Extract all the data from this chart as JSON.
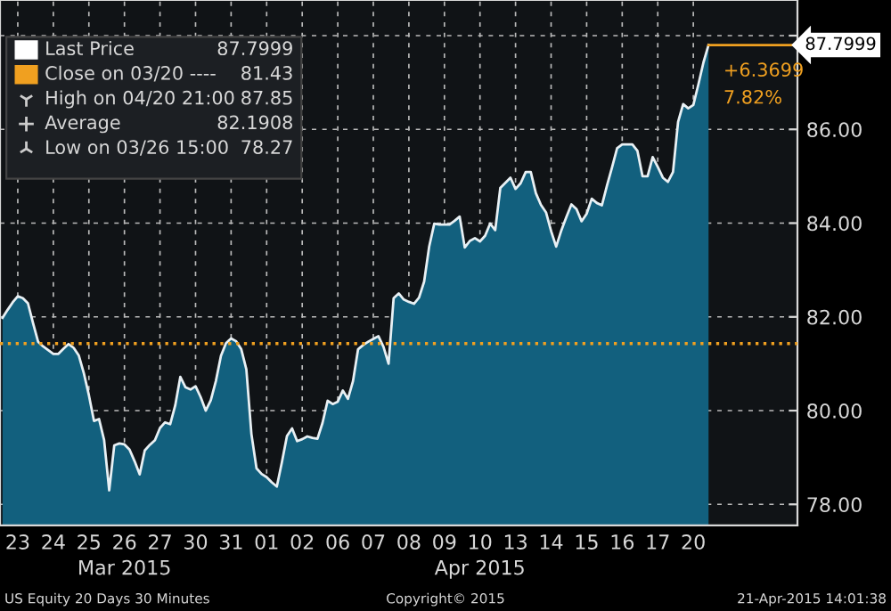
{
  "chart_data": {
    "type": "area",
    "categories": [
      null,
      null,
      null,
      "23",
      null,
      null,
      null,
      null,
      null,
      null,
      "24",
      null,
      null,
      null,
      null,
      null,
      null,
      "25",
      null,
      null,
      null,
      null,
      null,
      null,
      "26",
      null,
      null,
      null,
      null,
      null,
      null,
      "27",
      null,
      null,
      null,
      null,
      null,
      null,
      "30",
      null,
      null,
      null,
      null,
      null,
      null,
      "31",
      null,
      null,
      null,
      null,
      null,
      null,
      "01",
      null,
      null,
      null,
      null,
      null,
      null,
      "02",
      null,
      null,
      null,
      null,
      null,
      null,
      "06",
      null,
      null,
      null,
      null,
      null,
      null,
      "07",
      null,
      null,
      null,
      null,
      null,
      null,
      "08",
      null,
      null,
      null,
      null,
      null,
      null,
      "09",
      null,
      null,
      null,
      null,
      null,
      null,
      "10",
      null,
      null,
      null,
      null,
      null,
      null,
      "13",
      null,
      null,
      null,
      null,
      null,
      null,
      "14",
      null,
      null,
      null,
      null,
      null,
      null,
      "15",
      null,
      null,
      null,
      null,
      null,
      null,
      "16",
      null,
      null,
      null,
      null,
      null,
      null,
      "17",
      null,
      null,
      null,
      null,
      null,
      null,
      "20",
      null,
      null,
      null
    ],
    "series": [
      {
        "name": "Last Price",
        "color": "#12607e",
        "values": [
          81.98,
          82.15,
          82.31,
          82.44,
          82.4,
          82.29,
          81.87,
          81.47,
          81.37,
          81.29,
          81.21,
          81.21,
          81.32,
          81.42,
          81.34,
          81.18,
          80.8,
          80.33,
          79.78,
          79.82,
          79.37,
          78.3,
          79.26,
          79.3,
          79.28,
          79.17,
          78.92,
          78.64,
          79.15,
          79.27,
          79.37,
          79.63,
          79.75,
          79.71,
          80.11,
          80.72,
          80.5,
          80.45,
          80.52,
          80.29,
          80.0,
          80.22,
          80.63,
          81.17,
          81.44,
          81.54,
          81.48,
          81.31,
          80.88,
          79.5,
          78.77,
          78.65,
          78.58,
          78.47,
          78.38,
          78.9,
          79.46,
          79.62,
          79.35,
          79.39,
          79.45,
          79.42,
          79.4,
          79.74,
          80.21,
          80.14,
          80.19,
          80.43,
          80.25,
          80.63,
          81.31,
          81.4,
          81.47,
          81.53,
          81.59,
          81.36,
          81.0,
          82.4,
          82.5,
          82.37,
          82.32,
          82.28,
          82.41,
          82.75,
          83.5,
          83.99,
          83.97,
          83.97,
          83.97,
          84.05,
          84.14,
          83.48,
          83.62,
          83.68,
          83.61,
          83.73,
          83.99,
          83.85,
          84.75,
          84.86,
          84.97,
          84.73,
          84.85,
          85.09,
          85.09,
          84.64,
          84.39,
          84.23,
          83.83,
          83.5,
          83.84,
          84.13,
          84.4,
          84.3,
          84.04,
          84.2,
          84.52,
          84.43,
          84.38,
          84.8,
          85.19,
          85.6,
          85.68,
          85.68,
          85.68,
          85.54,
          85.0,
          85.0,
          85.41,
          85.2,
          84.97,
          84.88,
          85.09,
          86.16,
          86.54,
          86.45,
          86.52,
          86.96,
          87.43,
          87.7999
        ]
      }
    ],
    "ylim": [
      77.55,
      88.76
    ],
    "yticks": [
      {
        "value": 78,
        "label": "78.00"
      },
      {
        "value": 80,
        "label": "80.00"
      },
      {
        "value": 82,
        "label": "82.00"
      },
      {
        "value": 84,
        "label": "84.00"
      },
      {
        "value": 86,
        "label": "86.00"
      },
      {
        "value": 88,
        "label": null
      }
    ],
    "ref_lines": [
      {
        "axis": "y",
        "value": 81.43,
        "label": "Close on 03/20 ----",
        "color": "#f0a020",
        "line_style": "dotted"
      }
    ],
    "annotations": [
      "87.7999",
      "81.43",
      "High on 04/20 21:00",
      "87.85",
      "Average",
      "82.1908",
      "Low on 03/26 15:00",
      "78.27",
      "87.7999",
      "+6.3699",
      "7.82%",
      "Mar 2015",
      "Apr 2015",
      "US Equity 20 Days 30 Minutes",
      "Copyright© 2015",
      "21-Apr-2015 14:01:38"
    ],
    "grid": true,
    "legend": "top left",
    "line_style": "solid"
  }
}
